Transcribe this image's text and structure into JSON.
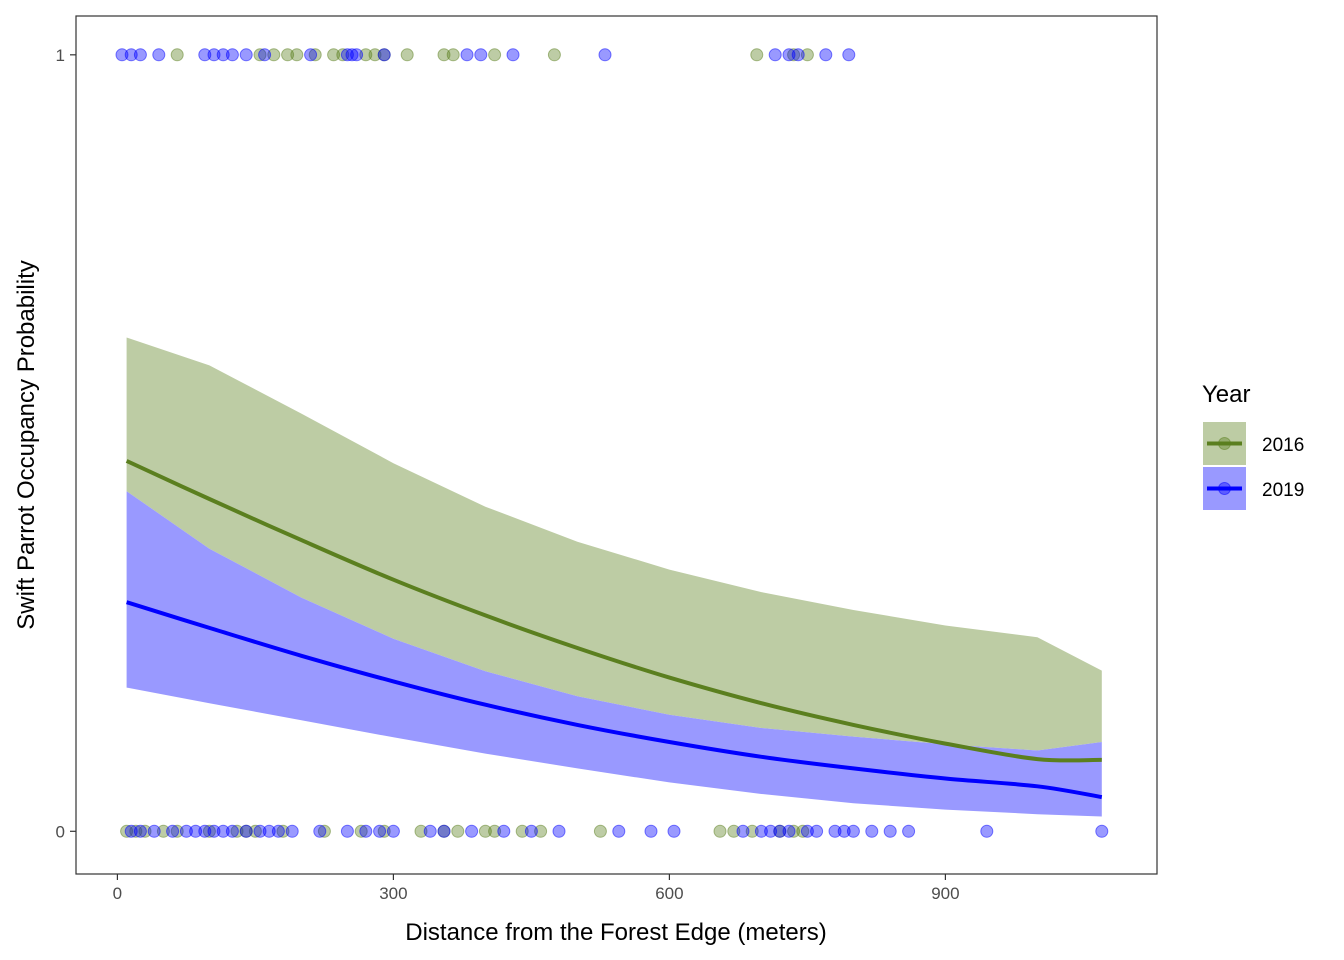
{
  "chart_data": {
    "type": "scatter",
    "title": "",
    "xlabel": "Distance from the Forest Edge (meters)",
    "ylabel": "Swift Parrot Occupancy Probability",
    "xlim": [
      -45,
      1130
    ],
    "ylim": [
      -0.055,
      1.05
    ],
    "x_ticks": [
      0,
      300,
      600,
      900
    ],
    "y_ticks": [
      0,
      1
    ],
    "grid": false,
    "legend": {
      "title": "Year",
      "placement": "right"
    },
    "colors": {
      "2016": "#5b7f1f",
      "2019": "#0000ff",
      "band_2016": "#bdcca4",
      "band_2019": "#9999ff",
      "overlap": "#737bc8"
    },
    "series": [
      {
        "name": "2016",
        "fit": {
          "x": [
            10,
            100,
            200,
            300,
            400,
            500,
            600,
            700,
            800,
            900,
            1000,
            1070
          ],
          "y": [
            0.477,
            0.428,
            0.375,
            0.324,
            0.278,
            0.236,
            0.198,
            0.165,
            0.137,
            0.113,
            0.093,
            0.092
          ]
        },
        "ci_upper": [
          0.636,
          0.6,
          0.538,
          0.474,
          0.418,
          0.373,
          0.337,
          0.308,
          0.285,
          0.265,
          0.25,
          0.207
        ],
        "ci_lower": [
          0.438,
          0.364,
          0.301,
          0.248,
          0.206,
          0.174,
          0.15,
          0.133,
          0.122,
          0.112,
          0.104,
          0.115
        ],
        "points_1": [
          65,
          155,
          170,
          185,
          195,
          215,
          235,
          245,
          270,
          280,
          290,
          315,
          355,
          365,
          410,
          475,
          695,
          735,
          750
        ],
        "points_0": [
          10,
          20,
          30,
          50,
          65,
          100,
          130,
          140,
          150,
          180,
          225,
          265,
          290,
          330,
          355,
          370,
          400,
          410,
          440,
          460,
          525,
          655,
          670,
          690,
          720,
          735,
          745
        ]
      },
      {
        "name": "2019",
        "fit": {
          "x": [
            10,
            100,
            200,
            300,
            400,
            500,
            600,
            700,
            800,
            900,
            1000,
            1070
          ],
          "y": [
            0.295,
            0.262,
            0.226,
            0.193,
            0.163,
            0.137,
            0.115,
            0.096,
            0.081,
            0.068,
            0.058,
            0.044
          ]
        },
        "ci_upper": [
          0.438,
          0.364,
          0.301,
          0.248,
          0.206,
          0.174,
          0.15,
          0.133,
          0.122,
          0.112,
          0.104,
          0.115
        ],
        "ci_lower": [
          0.185,
          0.165,
          0.143,
          0.121,
          0.1,
          0.081,
          0.063,
          0.048,
          0.036,
          0.028,
          0.022,
          0.019
        ],
        "points_1": [
          5,
          15,
          25,
          45,
          95,
          105,
          115,
          125,
          140,
          160,
          210,
          250,
          255,
          260,
          290,
          380,
          395,
          430,
          530,
          715,
          730,
          740,
          770,
          795
        ],
        "points_0": [
          15,
          25,
          40,
          60,
          75,
          85,
          95,
          105,
          115,
          125,
          140,
          155,
          165,
          175,
          190,
          220,
          250,
          270,
          285,
          300,
          340,
          355,
          385,
          420,
          450,
          480,
          545,
          580,
          605,
          680,
          700,
          710,
          720,
          730,
          750,
          760,
          780,
          790,
          800,
          820,
          840,
          860,
          945,
          1070
        ]
      }
    ]
  }
}
